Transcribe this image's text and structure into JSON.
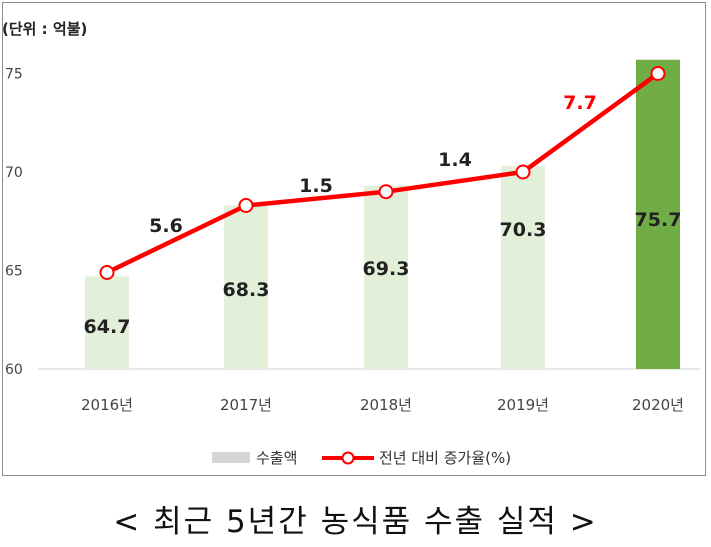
{
  "unit_label": "(단위 : 억불)",
  "caption": "< 최근 5년간 농식품 수출 실적 >",
  "colors": {
    "bar": "#e2efd9",
    "bar_highlight": "#70ad47",
    "line": "#ff0000",
    "marker_fill": "#ffffff",
    "rate_highlight": "#ff0000"
  },
  "chart_data": {
    "type": "bar",
    "categories": [
      "2016년",
      "2017년",
      "2018년",
      "2019년",
      "2020년"
    ],
    "series": [
      {
        "name": "수출액",
        "type": "bar",
        "values": [
          64.7,
          68.3,
          69.3,
          70.3,
          75.7
        ]
      },
      {
        "name": "전년 대비 증가율(%)",
        "type": "line",
        "values": [
          null,
          5.6,
          1.5,
          1.4,
          7.7
        ]
      }
    ],
    "line_points": [
      64.9,
      68.3,
      69.0,
      70.0,
      75.0
    ],
    "ylim": [
      60,
      76
    ],
    "yticks": [
      "60",
      "65",
      "70",
      "75"
    ],
    "value_labels": [
      "64.7",
      "68.3",
      "69.3",
      "70.3",
      "75.7"
    ],
    "rate_labels": [
      "5.6",
      "1.5",
      "1.4",
      "7.7"
    ],
    "legend": [
      "수출액",
      "전년 대비 증가율(%)"
    ],
    "legend_position": "bottom",
    "highlight_index": 4,
    "grid": false
  }
}
